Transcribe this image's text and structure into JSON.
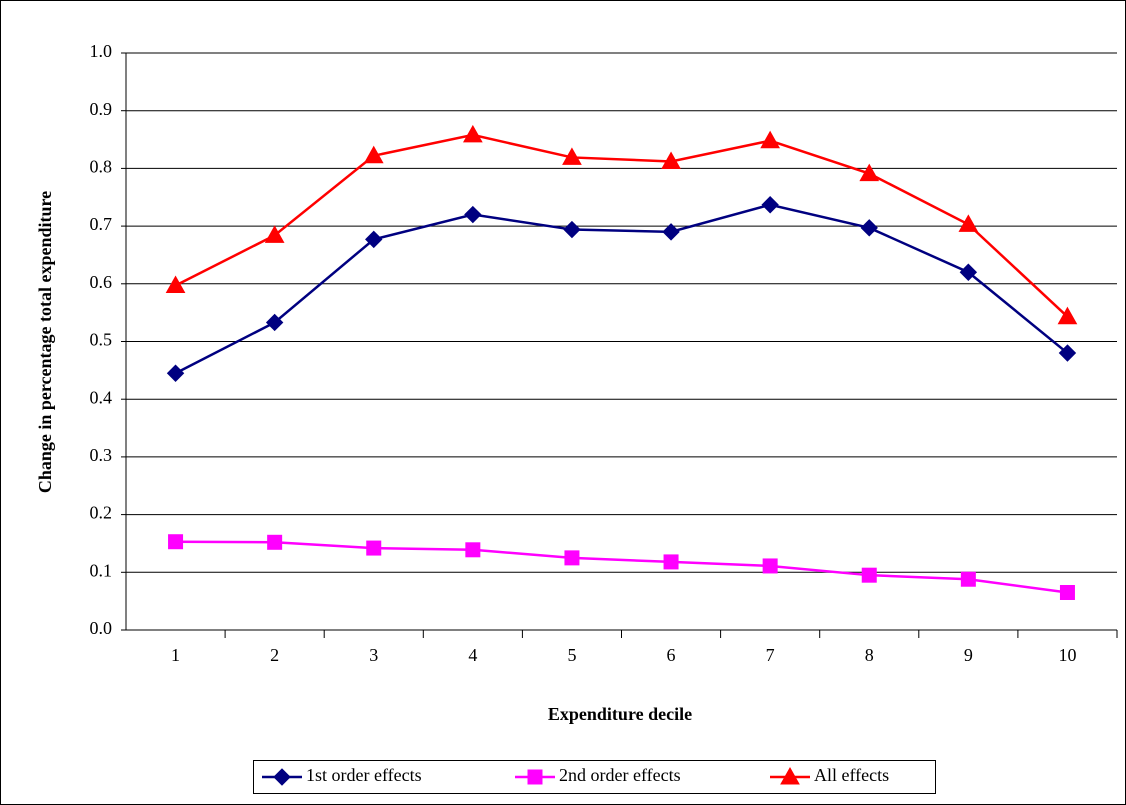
{
  "chart_data": {
    "type": "line",
    "x_label": "Expenditure decile",
    "y_label": "Change in percentage total expenditure",
    "categories": [
      "1",
      "2",
      "3",
      "4",
      "5",
      "6",
      "7",
      "8",
      "9",
      "10"
    ],
    "series": [
      {
        "name": "1st order effects",
        "color": "#000080",
        "marker": "diamond",
        "values": [
          0.445,
          0.533,
          0.677,
          0.72,
          0.694,
          0.69,
          0.737,
          0.697,
          0.62,
          0.48
        ]
      },
      {
        "name": "2nd order effects",
        "color": "#ff00ff",
        "marker": "square",
        "values": [
          0.153,
          0.152,
          0.142,
          0.139,
          0.125,
          0.118,
          0.111,
          0.095,
          0.088,
          0.065
        ]
      },
      {
        "name": "All effects",
        "color": "#ff0000",
        "marker": "triangle",
        "values": [
          0.597,
          0.684,
          0.822,
          0.858,
          0.819,
          0.812,
          0.848,
          0.791,
          0.703,
          0.543
        ]
      }
    ],
    "ylim": [
      0,
      1
    ],
    "yticks": [
      {
        "value": 0,
        "label": "0.0"
      },
      0.1,
      0.2,
      0.3,
      0.4,
      0.5,
      0.6,
      0.7,
      0.8,
      0.9,
      {
        "value": 1,
        "label": "1.0"
      }
    ],
    "grid": true,
    "legend": "bottom"
  }
}
